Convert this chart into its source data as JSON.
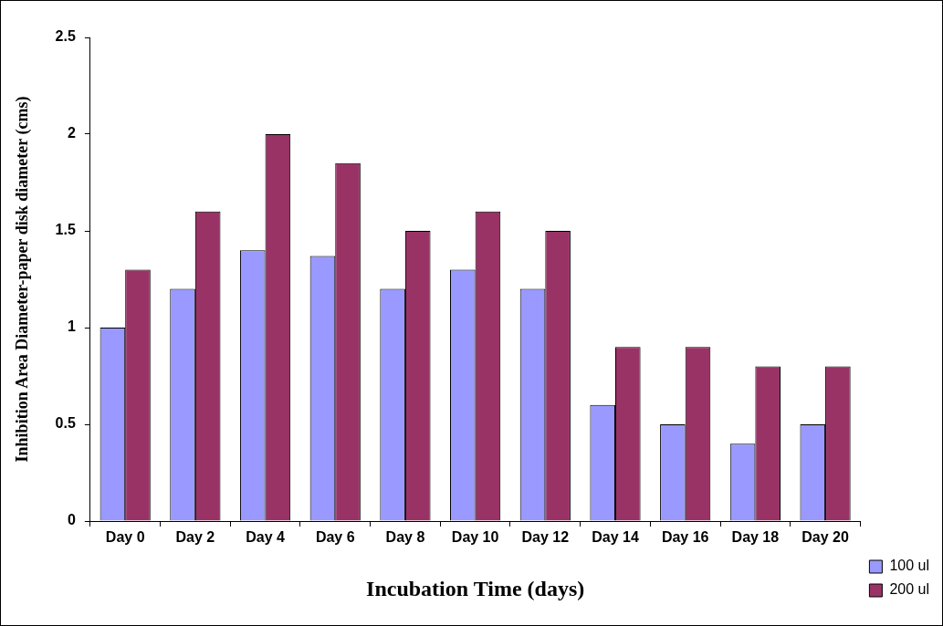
{
  "chart_data": {
    "type": "bar",
    "xlabel": "Incubation Time (days)",
    "ylabel": "Inhibition Area Diameter-paper disk diameter (cms)",
    "categories": [
      "Day 0",
      "Day 2",
      "Day 4",
      "Day 6",
      "Day 8",
      "Day 10",
      "Day 12",
      "Day 14",
      "Day 16",
      "Day 18",
      "Day 20"
    ],
    "series": [
      {
        "name": "100 ul",
        "color": "#9999ff",
        "values": [
          1.0,
          1.2,
          1.4,
          1.37,
          1.2,
          1.3,
          1.2,
          0.6,
          0.5,
          0.4,
          0.5
        ]
      },
      {
        "name": "200 ul",
        "color": "#993366",
        "values": [
          1.3,
          1.6,
          2.0,
          1.85,
          1.5,
          1.6,
          1.5,
          0.9,
          0.9,
          0.8,
          0.8
        ]
      }
    ],
    "ylim": [
      0,
      2.5
    ],
    "yticks": [
      0,
      0.5,
      1,
      1.5,
      2,
      2.5
    ],
    "grid": false,
    "legend": "bottom right"
  }
}
